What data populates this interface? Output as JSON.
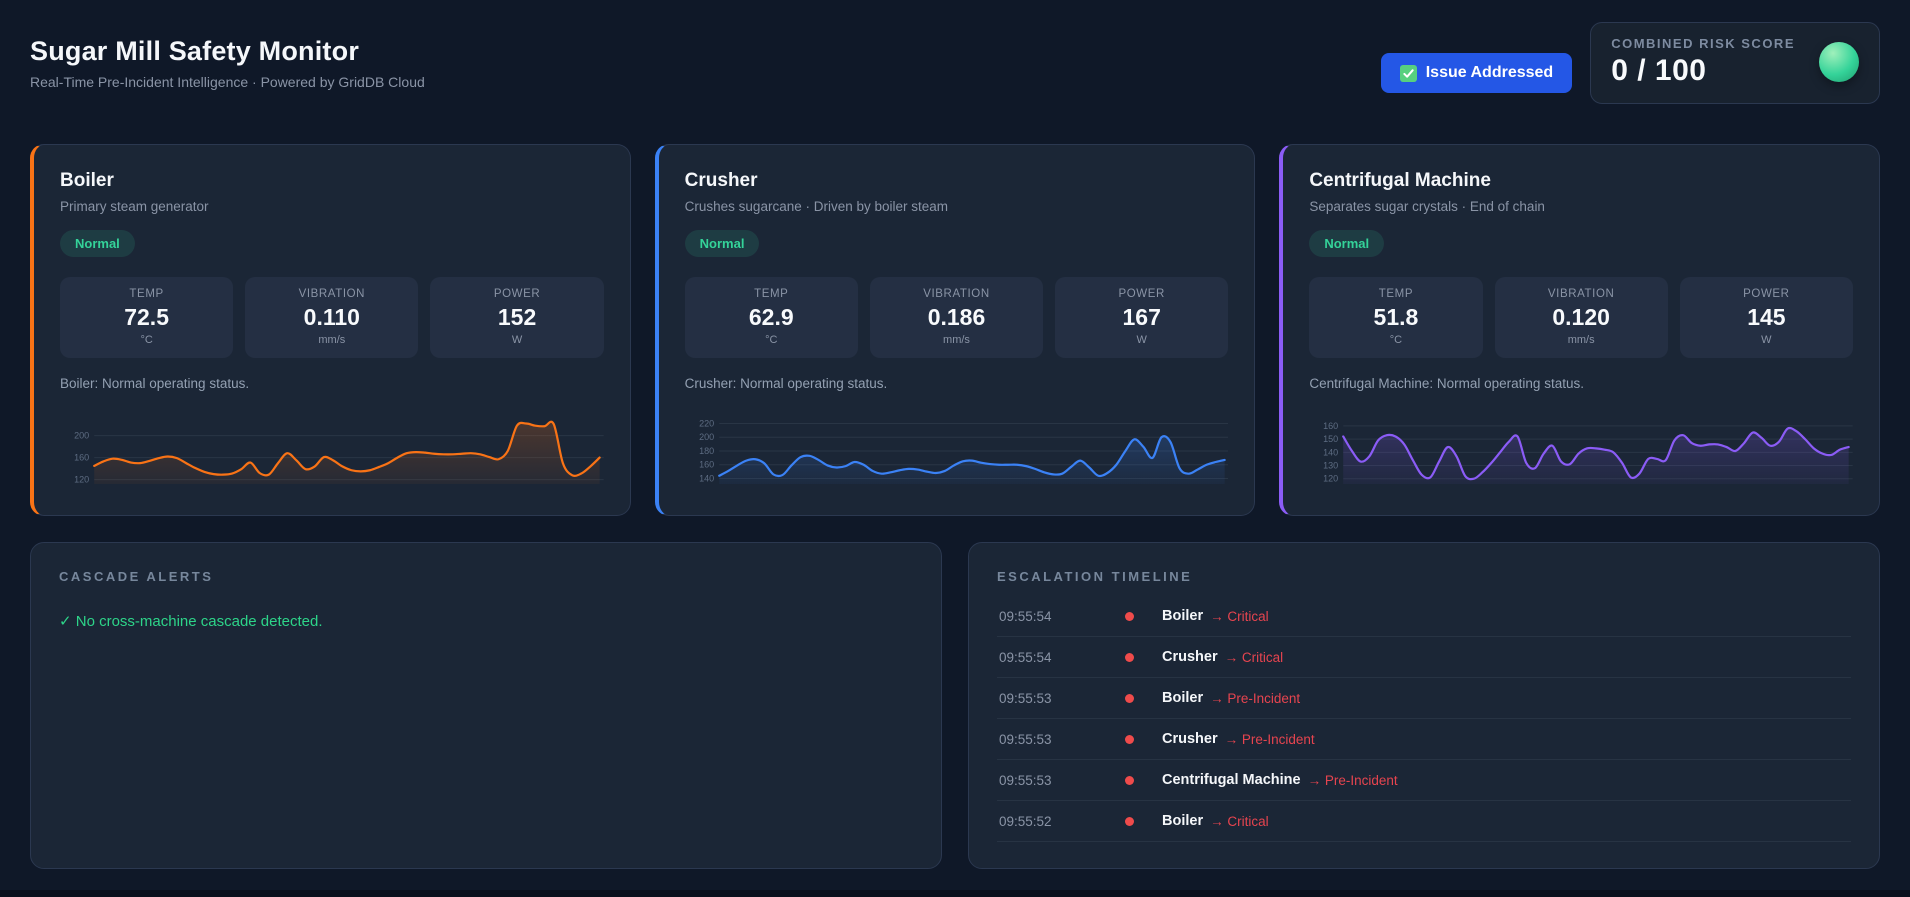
{
  "header": {
    "title": "Sugar Mill Safety Monitor",
    "subtitle": "Real-Time Pre-Incident Intelligence · Powered by GridDB Cloud",
    "issue_button_label": "Issue Addressed",
    "risk": {
      "label": "COMBINED RISK SCORE",
      "value": "0 / 100",
      "status_color": "#34d399"
    }
  },
  "machines": [
    {
      "name": "Boiler",
      "description": "Primary steam generator",
      "badge": "Normal",
      "accent": "#f97316",
      "metrics": [
        {
          "label": "TEMP",
          "value": "72.5",
          "unit": "°C"
        },
        {
          "label": "VIBRATION",
          "value": "0.110",
          "unit": "mm/s"
        },
        {
          "label": "POWER",
          "value": "152",
          "unit": "W"
        }
      ],
      "status_text": "Boiler: Normal operating status."
    },
    {
      "name": "Crusher",
      "description": "Crushes sugarcane · Driven by boiler steam",
      "badge": "Normal",
      "accent": "#3b82f6",
      "metrics": [
        {
          "label": "TEMP",
          "value": "62.9",
          "unit": "°C"
        },
        {
          "label": "VIBRATION",
          "value": "0.186",
          "unit": "mm/s"
        },
        {
          "label": "POWER",
          "value": "167",
          "unit": "W"
        }
      ],
      "status_text": "Crusher: Normal operating status."
    },
    {
      "name": "Centrifugal Machine",
      "description": "Separates sugar crystals · End of chain",
      "badge": "Normal",
      "accent": "#8b5cf6",
      "metrics": [
        {
          "label": "TEMP",
          "value": "51.8",
          "unit": "°C"
        },
        {
          "label": "VIBRATION",
          "value": "0.120",
          "unit": "mm/s"
        },
        {
          "label": "POWER",
          "value": "145",
          "unit": "W"
        }
      ],
      "status_text": "Centrifugal Machine: Normal operating status."
    }
  ],
  "chart_data": [
    {
      "type": "line",
      "title": "Boiler power trend (W)",
      "color": "#f97316",
      "ylim": [
        112,
        232
      ],
      "yticks": [
        200,
        160,
        120
      ],
      "values": [
        145,
        153,
        158,
        156,
        151,
        150,
        154,
        159,
        162,
        159,
        150,
        141,
        134,
        130,
        129,
        131,
        139,
        151,
        132,
        129,
        150,
        168,
        155,
        139,
        144,
        161,
        155,
        144,
        137,
        135,
        137,
        143,
        150,
        160,
        168,
        170,
        169,
        167,
        166,
        166,
        167,
        168,
        166,
        161,
        157,
        172,
        218,
        222,
        218,
        217,
        221,
        150,
        128,
        131,
        144,
        160
      ]
    },
    {
      "type": "line",
      "title": "Crusher power trend (W)",
      "color": "#3b82f6",
      "ylim": [
        132,
        228
      ],
      "yticks": [
        220,
        200,
        180,
        160,
        140
      ],
      "values": [
        144,
        151,
        159,
        166,
        168,
        162,
        146,
        145,
        159,
        171,
        173,
        167,
        159,
        156,
        158,
        164,
        160,
        151,
        147,
        149,
        152,
        154,
        153,
        150,
        148,
        151,
        159,
        165,
        166,
        163,
        161,
        160,
        160,
        160,
        158,
        154,
        149,
        146,
        147,
        157,
        166,
        156,
        144,
        148,
        160,
        180,
        197,
        186,
        170,
        200,
        193,
        155,
        147,
        153,
        160,
        164,
        167
      ]
    },
    {
      "type": "line",
      "title": "Centrifugal Machine power trend (W)",
      "color": "#8b5cf6",
      "ylim": [
        116,
        166
      ],
      "yticks": [
        160,
        150,
        140,
        130,
        120
      ],
      "values": [
        152,
        141,
        133,
        137,
        149,
        153,
        152,
        146,
        134,
        123,
        121,
        133,
        144,
        137,
        122,
        120,
        125,
        132,
        140,
        148,
        152,
        132,
        128,
        139,
        145,
        133,
        131,
        139,
        143,
        143,
        142,
        140,
        132,
        121,
        124,
        135,
        135,
        134,
        149,
        153,
        147,
        145,
        146,
        146,
        144,
        141,
        147,
        155,
        151,
        145,
        148,
        158,
        156,
        150,
        143,
        139,
        138,
        142,
        144
      ]
    }
  ],
  "cascade": {
    "title": "CASCADE ALERTS",
    "message": "✓ No cross-machine cascade detected."
  },
  "timeline": {
    "title": "ESCALATION TIMELINE",
    "arrow": "→",
    "events": [
      {
        "time": "09:55:54",
        "machine": "Boiler",
        "status": "Critical"
      },
      {
        "time": "09:55:54",
        "machine": "Crusher",
        "status": "Critical"
      },
      {
        "time": "09:55:53",
        "machine": "Boiler",
        "status": "Pre-Incident"
      },
      {
        "time": "09:55:53",
        "machine": "Crusher",
        "status": "Pre-Incident"
      },
      {
        "time": "09:55:53",
        "machine": "Centrifugal Machine",
        "status": "Pre-Incident"
      },
      {
        "time": "09:55:52",
        "machine": "Boiler",
        "status": "Critical"
      }
    ]
  }
}
